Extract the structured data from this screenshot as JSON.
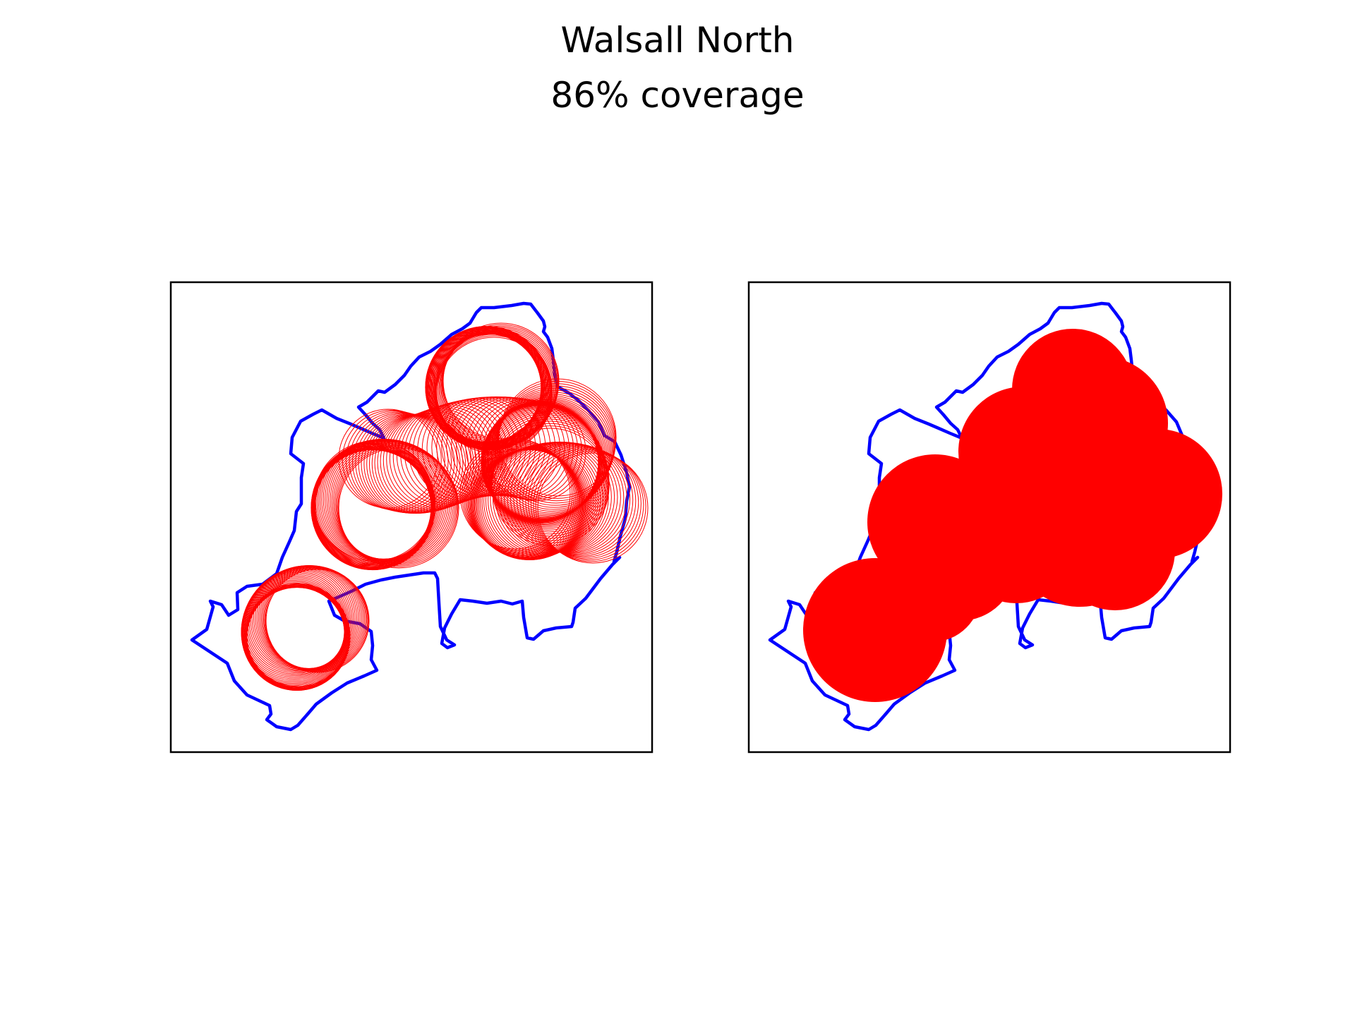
{
  "title": "Walsall North",
  "subtitle": "86% coverage",
  "colors": {
    "boundary": "#0000ff",
    "coverage": "#ff0000",
    "frame": "#000000",
    "background": "#ffffff"
  },
  "panels": [
    {
      "name": "coverage-rings-panel",
      "style": "outline-rings"
    },
    {
      "name": "coverage-filled-panel",
      "style": "filled-circles"
    }
  ],
  "coverage_percent": 86
}
